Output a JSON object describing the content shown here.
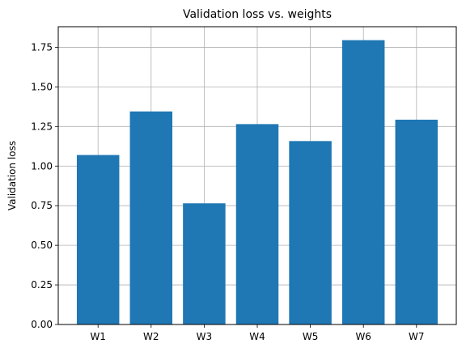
{
  "chart_data": {
    "type": "bar",
    "title": "Validation loss vs. weights",
    "xlabel": "",
    "ylabel": "Validation loss",
    "categories": [
      "W1",
      "W2",
      "W3",
      "W4",
      "W5",
      "W6",
      "W7"
    ],
    "values": [
      1.07,
      1.345,
      0.765,
      1.265,
      1.158,
      1.795,
      1.293
    ],
    "ylim": [
      0,
      1.88
    ],
    "yticks": [
      0.0,
      0.25,
      0.5,
      0.75,
      1.0,
      1.25,
      1.5,
      1.75
    ],
    "ytick_labels": [
      "0.00",
      "0.25",
      "0.50",
      "0.75",
      "1.00",
      "1.25",
      "1.50",
      "1.75"
    ],
    "grid": true,
    "bar_color": "#1f77b4",
    "grid_color": "#b0b0b0"
  }
}
